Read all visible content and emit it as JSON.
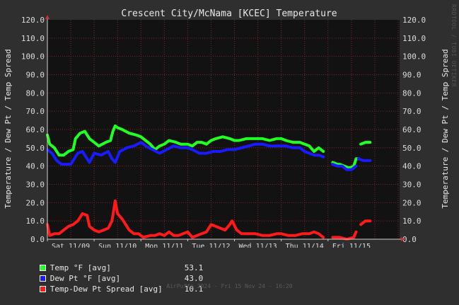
{
  "chart_data": {
    "type": "line",
    "title": "Crescent City/McNama [KCEC] Temperature",
    "ylabel_left": "Temperature / Dew Pt / Temp Spread",
    "ylabel_right": "Temperature / Dew Pt / Temp Spread",
    "ylim": [
      0,
      120
    ],
    "yticks": [
      "0.0",
      "10.0",
      "20.0",
      "30.0",
      "40.0",
      "50.0",
      "60.0",
      "70.0",
      "80.0",
      "90.0",
      "100.0",
      "110.0",
      "120.0"
    ],
    "xlim_days": [
      0,
      7.53
    ],
    "xticks": [
      {
        "day": 0.0,
        "label": "Sat 11/09"
      },
      {
        "day": 1.0,
        "label": "Sun 11/10"
      },
      {
        "day": 2.0,
        "label": "Mon 11/11"
      },
      {
        "day": 3.0,
        "label": "Tue 11/12"
      },
      {
        "day": 4.0,
        "label": "Wed 11/13"
      },
      {
        "day": 5.0,
        "label": "Thu 11/14"
      },
      {
        "day": 6.0,
        "label": "Fri 11/15"
      }
    ],
    "grid": true,
    "colors": {
      "background": "#2f2f2f",
      "plot": "#121212",
      "grid": "#7a2a2a",
      "axis": "#cccccc"
    },
    "series": [
      {
        "name": "Temp °F [avg]",
        "color": "#22ff22",
        "segments": [
          [
            [
              0,
              57
            ],
            [
              0.05,
              52
            ],
            [
              0.15,
              50
            ],
            [
              0.25,
              46
            ],
            [
              0.35,
              46
            ],
            [
              0.45,
              48
            ],
            [
              0.55,
              49
            ],
            [
              0.6,
              55
            ],
            [
              0.7,
              58
            ],
            [
              0.8,
              59
            ],
            [
              0.9,
              55
            ],
            [
              1.0,
              53
            ],
            [
              1.1,
              51
            ],
            [
              1.25,
              53
            ],
            [
              1.35,
              54
            ],
            [
              1.4,
              59
            ],
            [
              1.45,
              62
            ],
            [
              1.5,
              61
            ],
            [
              1.6,
              60
            ],
            [
              1.75,
              58
            ],
            [
              1.9,
              57
            ],
            [
              2.0,
              56
            ],
            [
              2.1,
              54
            ],
            [
              2.2,
              52
            ],
            [
              2.3,
              49
            ],
            [
              2.4,
              51
            ],
            [
              2.5,
              52
            ],
            [
              2.6,
              54
            ],
            [
              2.75,
              53
            ],
            [
              2.85,
              52
            ],
            [
              3.0,
              52
            ],
            [
              3.1,
              51
            ],
            [
              3.2,
              53
            ],
            [
              3.3,
              53
            ],
            [
              3.4,
              52
            ],
            [
              3.5,
              54
            ],
            [
              3.6,
              55
            ],
            [
              3.75,
              56
            ],
            [
              3.9,
              55
            ],
            [
              4.0,
              54
            ],
            [
              4.1,
              54
            ],
            [
              4.25,
              55
            ],
            [
              4.4,
              55
            ],
            [
              4.5,
              55
            ],
            [
              4.6,
              55
            ],
            [
              4.75,
              54
            ],
            [
              4.9,
              55
            ],
            [
              5.0,
              55
            ],
            [
              5.1,
              54
            ],
            [
              5.25,
              53
            ],
            [
              5.4,
              53
            ],
            [
              5.5,
              52
            ],
            [
              5.6,
              51
            ],
            [
              5.7,
              48
            ],
            [
              5.8,
              50
            ],
            [
              5.9,
              48
            ]
          ],
          [
            [
              6.1,
              42
            ],
            [
              6.2,
              41
            ],
            [
              6.25,
              41
            ],
            [
              6.35,
              40
            ],
            [
              6.45,
              39
            ],
            [
              6.55,
              40
            ],
            [
              6.6,
              44
            ],
            [
              6.65,
              44
            ]
          ],
          [
            [
              6.7,
              52
            ],
            [
              6.8,
              53
            ],
            [
              6.9,
              53
            ]
          ]
        ]
      },
      {
        "name": "Dew Pt °F [avg]",
        "color": "#1a1aff",
        "segments": [
          [
            [
              0,
              49
            ],
            [
              0.1,
              47
            ],
            [
              0.2,
              43
            ],
            [
              0.3,
              41
            ],
            [
              0.4,
              41
            ],
            [
              0.5,
              41
            ],
            [
              0.55,
              43
            ],
            [
              0.65,
              47
            ],
            [
              0.75,
              48
            ],
            [
              0.85,
              44
            ],
            [
              0.9,
              42
            ],
            [
              1.0,
              47
            ],
            [
              1.15,
              46
            ],
            [
              1.3,
              48
            ],
            [
              1.38,
              44
            ],
            [
              1.45,
              42
            ],
            [
              1.55,
              48
            ],
            [
              1.7,
              50
            ],
            [
              1.85,
              51
            ],
            [
              2.0,
              53
            ],
            [
              2.1,
              51
            ],
            [
              2.25,
              49
            ],
            [
              2.4,
              47
            ],
            [
              2.55,
              49
            ],
            [
              2.7,
              51
            ],
            [
              2.85,
              50
            ],
            [
              3.0,
              50
            ],
            [
              3.1,
              49
            ],
            [
              3.25,
              47
            ],
            [
              3.4,
              47
            ],
            [
              3.55,
              48
            ],
            [
              3.7,
              48
            ],
            [
              3.85,
              49
            ],
            [
              4.0,
              49
            ],
            [
              4.15,
              50
            ],
            [
              4.3,
              51
            ],
            [
              4.45,
              52
            ],
            [
              4.6,
              52
            ],
            [
              4.75,
              51
            ],
            [
              4.9,
              51
            ],
            [
              5.0,
              51
            ],
            [
              5.1,
              51
            ],
            [
              5.25,
              50
            ],
            [
              5.4,
              50
            ],
            [
              5.5,
              48
            ],
            [
              5.6,
              47
            ],
            [
              5.7,
              46
            ],
            [
              5.8,
              46
            ],
            [
              5.9,
              45
            ]
          ],
          [
            [
              6.1,
              41
            ],
            [
              6.2,
              40
            ],
            [
              6.3,
              40
            ],
            [
              6.4,
              38
            ],
            [
              6.5,
              38
            ],
            [
              6.6,
              40
            ]
          ],
          [
            [
              6.65,
              44
            ],
            [
              6.75,
              43
            ],
            [
              6.9,
              43
            ]
          ]
        ]
      },
      {
        "name": "Temp-Dew Pt Spread [avg]",
        "color": "#ff1a1a",
        "segments": [
          [
            [
              0,
              8
            ],
            [
              0.05,
              2
            ],
            [
              0.15,
              3
            ],
            [
              0.25,
              3
            ],
            [
              0.35,
              5
            ],
            [
              0.45,
              7
            ],
            [
              0.55,
              8
            ],
            [
              0.65,
              10
            ],
            [
              0.75,
              14
            ],
            [
              0.85,
              13
            ],
            [
              0.9,
              7
            ],
            [
              1.0,
              5
            ],
            [
              1.1,
              4
            ],
            [
              1.2,
              5
            ],
            [
              1.3,
              6
            ],
            [
              1.38,
              10
            ],
            [
              1.45,
              21
            ],
            [
              1.5,
              14
            ],
            [
              1.6,
              11
            ],
            [
              1.75,
              5
            ],
            [
              1.85,
              3
            ],
            [
              1.95,
              3
            ],
            [
              2.05,
              1
            ],
            [
              2.2,
              2
            ],
            [
              2.3,
              2
            ],
            [
              2.4,
              3
            ],
            [
              2.5,
              2
            ],
            [
              2.6,
              4
            ],
            [
              2.7,
              2
            ],
            [
              2.8,
              2
            ],
            [
              2.9,
              3
            ],
            [
              3.0,
              4
            ],
            [
              3.1,
              1
            ],
            [
              3.2,
              2
            ],
            [
              3.3,
              3
            ],
            [
              3.4,
              4
            ],
            [
              3.5,
              8
            ],
            [
              3.6,
              7
            ],
            [
              3.7,
              6
            ],
            [
              3.8,
              5
            ],
            [
              3.9,
              8
            ],
            [
              3.95,
              10
            ],
            [
              4.05,
              5
            ],
            [
              4.15,
              3
            ],
            [
              4.3,
              3
            ],
            [
              4.45,
              3
            ],
            [
              4.6,
              2
            ],
            [
              4.75,
              2
            ],
            [
              4.9,
              3
            ],
            [
              5.0,
              3
            ],
            [
              5.15,
              2
            ],
            [
              5.3,
              2
            ],
            [
              5.45,
              3
            ],
            [
              5.6,
              3
            ],
            [
              5.7,
              4
            ],
            [
              5.8,
              3
            ],
            [
              5.9,
              1
            ]
          ],
          [
            [
              6.1,
              1
            ],
            [
              6.25,
              1
            ],
            [
              6.4,
              0
            ],
            [
              6.55,
              1
            ],
            [
              6.6,
              4
            ]
          ],
          [
            [
              6.7,
              8
            ],
            [
              6.8,
              10
            ],
            [
              6.9,
              10
            ]
          ]
        ]
      }
    ]
  },
  "legend": [
    {
      "label": "Temp °F [avg]",
      "value": "53.1",
      "color": "#22ff22"
    },
    {
      "label": "Dew Pt °F [avg]",
      "value": "43.0",
      "color": "#1a1aff"
    },
    {
      "label": "Temp-Dew Pt Spread [avg]",
      "value": "10.1",
      "color": "#ff1a1a"
    }
  ],
  "footer": "AirPuffe 2024 - Fri 15 Nov 24 - 16:20",
  "brand": "RRDTOOL / TOBI OETIKER"
}
